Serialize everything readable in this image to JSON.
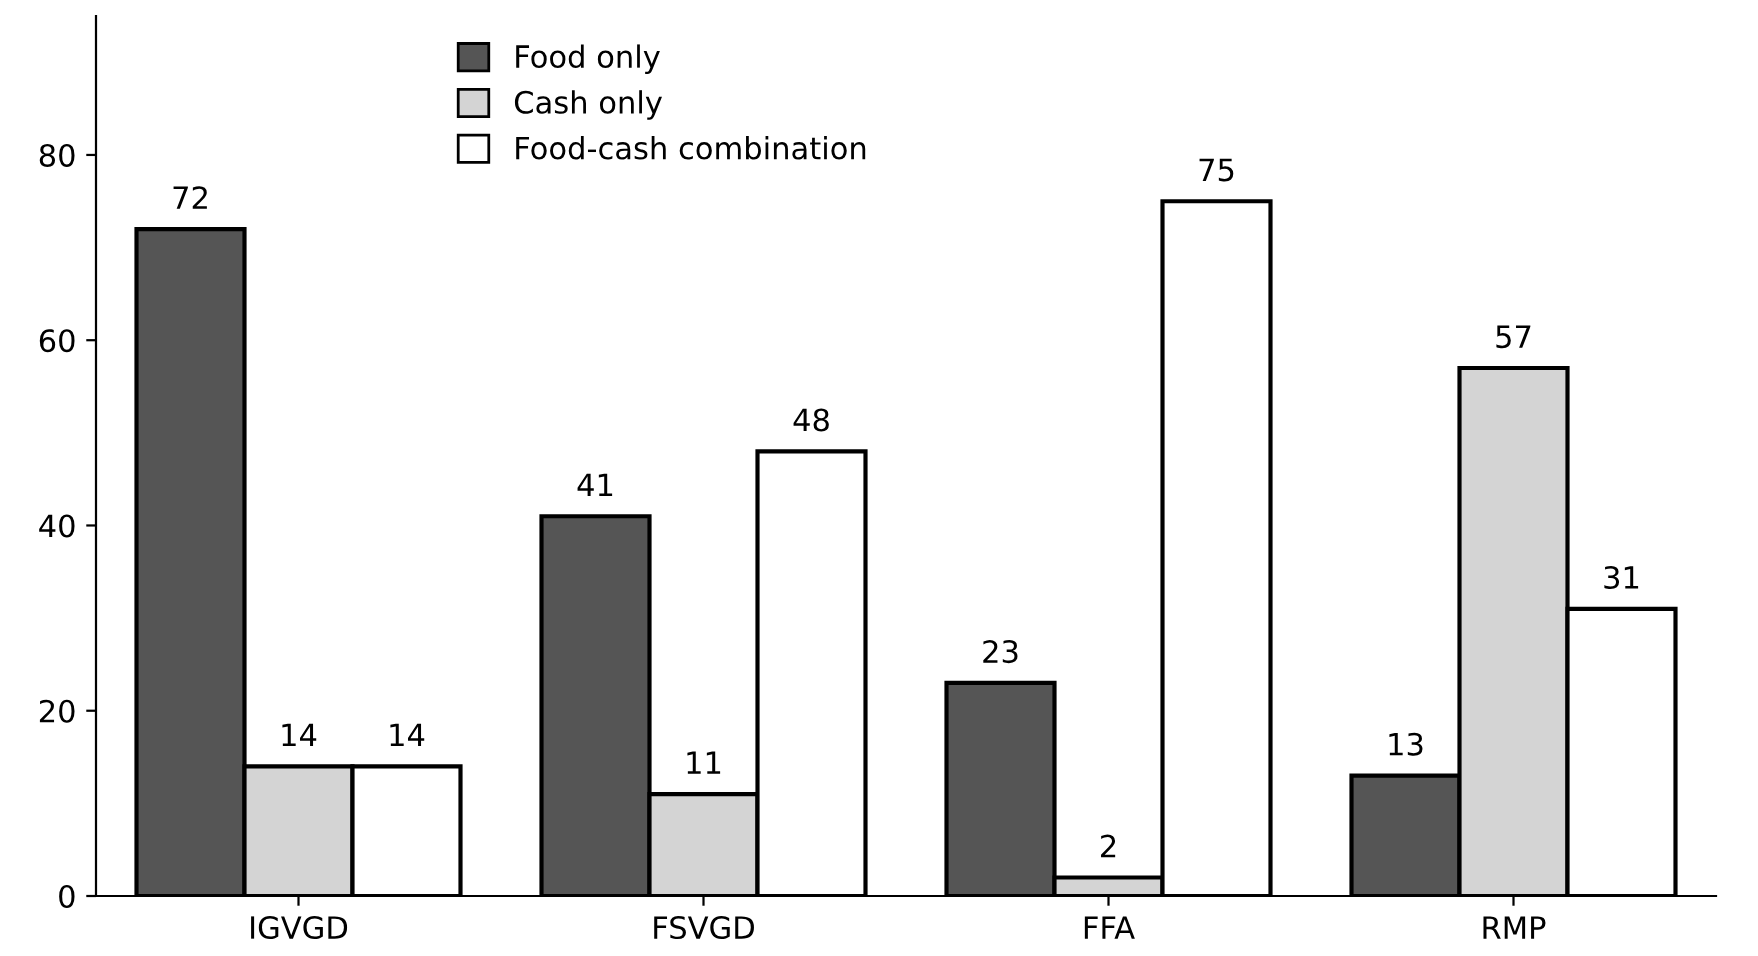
{
  "chart_data": {
    "type": "bar",
    "categories": [
      "IGVGD",
      "FSVGD",
      "FFA",
      "RMP"
    ],
    "series": [
      {
        "name": "Food only",
        "color": "#555555",
        "values": [
          72,
          41,
          23,
          13
        ]
      },
      {
        "name": "Cash only",
        "color": "#d4d4d4",
        "values": [
          14,
          11,
          2,
          57
        ]
      },
      {
        "name": "Food-cash combination",
        "color": "#ffffff",
        "values": [
          14,
          48,
          75,
          31
        ]
      }
    ],
    "ylim": [
      0,
      95
    ],
    "yticks": [
      0,
      20,
      40,
      60,
      80
    ],
    "data_labels": true,
    "legend": "top",
    "grid": false
  }
}
